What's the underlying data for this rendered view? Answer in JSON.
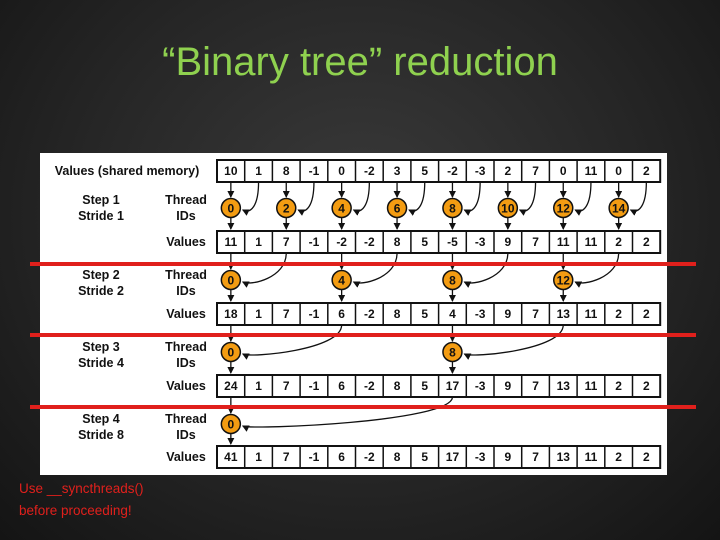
{
  "title": "“Binary tree” reduction",
  "header_label": "Values (shared memory)",
  "initial_values": [
    "10",
    "1",
    "8",
    "-1",
    "0",
    "-2",
    "3",
    "5",
    "-2",
    "-3",
    "2",
    "7",
    "0",
    "11",
    "0",
    "2"
  ],
  "steps": [
    {
      "step_label": "Step 1",
      "stride_label": "Stride 1",
      "thread_ids": [
        "0",
        "2",
        "4",
        "6",
        "8",
        "10",
        "12",
        "14"
      ],
      "values": [
        "11",
        "1",
        "7",
        "-1",
        "-2",
        "-2",
        "8",
        "5",
        "-5",
        "-3",
        "9",
        "7",
        "11",
        "11",
        "2",
        "2"
      ]
    },
    {
      "step_label": "Step 2",
      "stride_label": "Stride 2",
      "thread_ids": [
        "0",
        "4",
        "8",
        "12"
      ],
      "values": [
        "18",
        "1",
        "7",
        "-1",
        "6",
        "-2",
        "8",
        "5",
        "4",
        "-3",
        "9",
        "7",
        "13",
        "11",
        "2",
        "2"
      ]
    },
    {
      "step_label": "Step 3",
      "stride_label": "Stride 4",
      "thread_ids": [
        "0",
        "8"
      ],
      "values": [
        "24",
        "1",
        "7",
        "-1",
        "6",
        "-2",
        "8",
        "5",
        "17",
        "-3",
        "9",
        "7",
        "13",
        "11",
        "2",
        "2"
      ]
    },
    {
      "step_label": "Step 4",
      "stride_label": "Stride 8",
      "thread_ids": [
        "0"
      ],
      "values": [
        "41",
        "1",
        "7",
        "-1",
        "6",
        "-2",
        "8",
        "5",
        "17",
        "-3",
        "9",
        "7",
        "13",
        "11",
        "2",
        "2"
      ]
    }
  ],
  "thread_label": [
    "Thread",
    "IDs"
  ],
  "values_label": "Values",
  "note": [
    "Use __syncthreads()",
    "before proceeding!"
  ],
  "colors": {
    "title": "#8fd14f",
    "thread_circle": "#f39c12",
    "sync_line": "#e0201c",
    "note": "#e0201c"
  }
}
